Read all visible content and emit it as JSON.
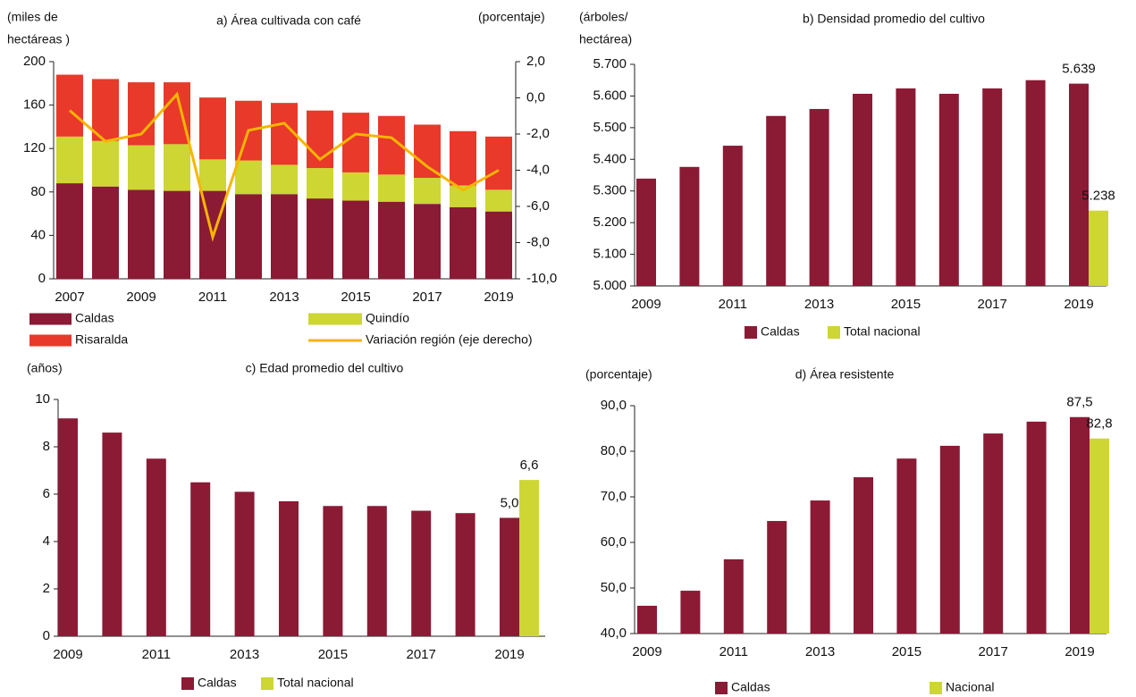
{
  "chart_data": [
    {
      "type": "bar",
      "stacked": true,
      "title": "a) Área cultivada con café",
      "ylabel": [
        "(miles de",
        "hectáreas )"
      ],
      "y2label": "(porcentaje)",
      "categories": [
        "2007",
        null,
        "2009",
        null,
        "2011",
        null,
        "2013",
        null,
        "2015",
        null,
        "2017",
        null,
        "2019"
      ],
      "series": [
        {
          "name": "Caldas",
          "color": "#8b1a35",
          "values": [
            88,
            85,
            82,
            81,
            81,
            78,
            78,
            74,
            72,
            71,
            69,
            66,
            62
          ]
        },
        {
          "name": "Quindío",
          "color": "#cdd633",
          "values": [
            43,
            42,
            41,
            43,
            29,
            31,
            27,
            28,
            26,
            25,
            24,
            20,
            20
          ]
        },
        {
          "name": "Risaralda",
          "color": "#e8392a",
          "values": [
            57,
            57,
            58,
            57,
            57,
            55,
            57,
            53,
            55,
            54,
            49,
            50,
            49
          ]
        },
        {
          "name": "Variación región (eje derecho)",
          "type": "line",
          "axis": "y2",
          "color": "#f7b500",
          "values": [
            -0.7,
            -2.4,
            -2.0,
            0.2,
            -7.7,
            -1.8,
            -1.4,
            -3.4,
            -2.0,
            -2.2,
            -3.8,
            -5.1,
            -4.0
          ]
        }
      ],
      "ylim": [
        0,
        200
      ],
      "yticks": [
        0,
        40,
        80,
        120,
        160,
        200
      ],
      "y2lim": [
        -10,
        2
      ],
      "y2ticks": [
        {
          "value": -10,
          "label": "-10,0"
        },
        {
          "value": -8,
          "label": "-8,0"
        },
        {
          "value": -6,
          "label": "-6,0"
        },
        {
          "value": -4,
          "label": "-4,0"
        },
        {
          "value": -2,
          "label": "-2,0"
        },
        {
          "value": 0,
          "label": "0,0"
        },
        {
          "value": 2,
          "label": "2,0"
        }
      ]
    },
    {
      "type": "bar",
      "title": "b) Densidad promedio del cultivo",
      "ylabel": [
        "(árboles/",
        "hectárea)"
      ],
      "categories": [
        "2009",
        null,
        "2011",
        null,
        "2013",
        null,
        "2015",
        null,
        "2017",
        null,
        "2019"
      ],
      "series": [
        {
          "name": "Caldas",
          "color": "#8b1a35",
          "values": [
            5339,
            5376,
            5443,
            5537,
            5559,
            5607,
            5624,
            5607,
            5624,
            5650,
            5639
          ],
          "value_labels": [
            null,
            null,
            null,
            null,
            null,
            null,
            null,
            null,
            null,
            null,
            "5.639"
          ]
        },
        {
          "name": "Total nacional",
          "color": "#cdd633",
          "values": [
            null,
            null,
            null,
            null,
            null,
            null,
            null,
            null,
            null,
            null,
            5238
          ],
          "value_labels": [
            null,
            null,
            null,
            null,
            null,
            null,
            null,
            null,
            null,
            null,
            "5.238"
          ]
        }
      ],
      "ylim": [
        5000,
        5700
      ],
      "yticks": [
        {
          "value": 5000,
          "label": "5.000"
        },
        {
          "value": 5100,
          "label": "5.100"
        },
        {
          "value": 5200,
          "label": "5.200"
        },
        {
          "value": 5300,
          "label": "5.300"
        },
        {
          "value": 5400,
          "label": "5.400"
        },
        {
          "value": 5500,
          "label": "5.500"
        },
        {
          "value": 5600,
          "label": "5.600"
        },
        {
          "value": 5700,
          "label": "5.700"
        }
      ]
    },
    {
      "type": "bar",
      "title": "c) Edad promedio del cultivo",
      "ylabel": [
        "(años)"
      ],
      "categories": [
        "2009",
        null,
        "2011",
        null,
        "2013",
        null,
        "2015",
        null,
        "2017",
        null,
        "2019"
      ],
      "series": [
        {
          "name": "Caldas",
          "color": "#8b1a35",
          "values": [
            9.2,
            8.6,
            7.5,
            6.5,
            6.1,
            5.7,
            5.5,
            5.5,
            5.3,
            5.2,
            5.0
          ],
          "value_labels": [
            null,
            null,
            null,
            null,
            null,
            null,
            null,
            null,
            null,
            null,
            "5,0"
          ]
        },
        {
          "name": "Total nacional",
          "color": "#cdd633",
          "values": [
            null,
            null,
            null,
            null,
            null,
            null,
            null,
            null,
            null,
            null,
            6.6
          ],
          "value_labels": [
            null,
            null,
            null,
            null,
            null,
            null,
            null,
            null,
            null,
            null,
            "6,6"
          ]
        }
      ],
      "ylim": [
        0,
        10
      ],
      "yticks": [
        0,
        2,
        4,
        6,
        8,
        10
      ]
    },
    {
      "type": "bar",
      "title": "d) Área resistente",
      "ylabel": [
        "(porcentaje)"
      ],
      "categories": [
        "2009",
        null,
        "2011",
        null,
        "2013",
        null,
        "2015",
        null,
        "2017",
        null,
        "2019"
      ],
      "series": [
        {
          "name": "Caldas",
          "color": "#8b1a35",
          "values": [
            46.1,
            49.4,
            56.3,
            64.7,
            69.2,
            74.3,
            78.4,
            81.2,
            83.9,
            86.5,
            87.5
          ],
          "value_labels": [
            null,
            null,
            null,
            null,
            null,
            null,
            null,
            null,
            null,
            null,
            "87,5"
          ]
        },
        {
          "name": "Nacional",
          "color": "#cdd633",
          "values": [
            null,
            null,
            null,
            null,
            null,
            null,
            null,
            null,
            null,
            null,
            82.8
          ],
          "value_labels": [
            null,
            null,
            null,
            null,
            null,
            null,
            null,
            null,
            null,
            null,
            "82,8"
          ]
        }
      ],
      "ylim": [
        40,
        90
      ],
      "yticks": [
        {
          "value": 40,
          "label": "40,0"
        },
        {
          "value": 50,
          "label": "50,0"
        },
        {
          "value": 60,
          "label": "60,0"
        },
        {
          "value": 70,
          "label": "70,0"
        },
        {
          "value": 80,
          "label": "80,0"
        },
        {
          "value": 90,
          "label": "90,0"
        }
      ]
    }
  ]
}
